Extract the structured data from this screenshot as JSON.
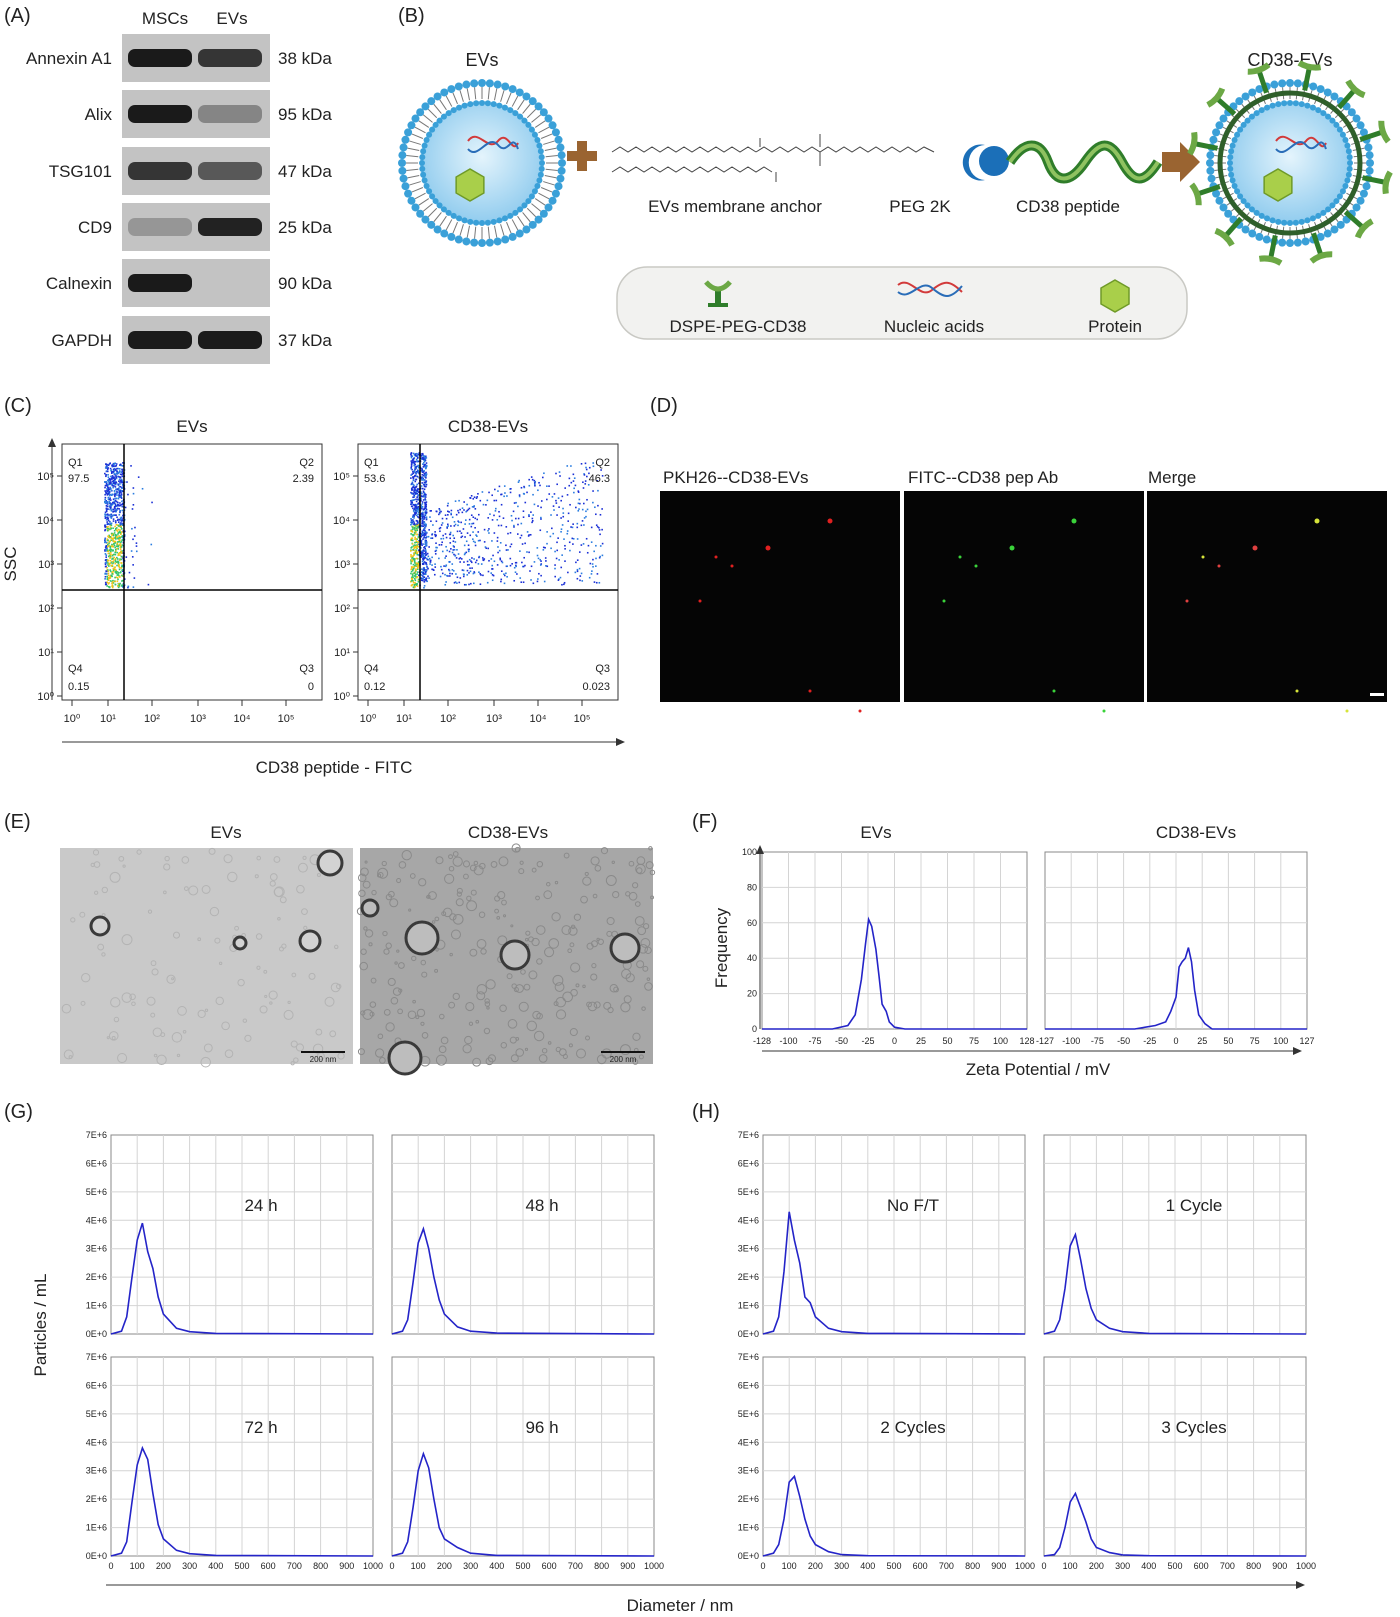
{
  "panel_labels": {
    "A": "(A)",
    "B": "(B)",
    "C": "(C)",
    "D": "(D)",
    "E": "(E)",
    "F": "(F)",
    "G": "(G)",
    "H": "(H)"
  },
  "panel_a": {
    "columns": [
      "MSCs",
      "EVs"
    ],
    "rows": [
      {
        "protein": "Annexin A1",
        "kda": "38 kDa",
        "msc": 0.95,
        "ev": 0.8
      },
      {
        "protein": "Alix",
        "kda": "95 kDa",
        "msc": 0.95,
        "ev": 0.35
      },
      {
        "protein": "TSG101",
        "kda": "47 kDa",
        "msc": 0.8,
        "ev": 0.6
      },
      {
        "protein": "CD9",
        "kda": "25 kDa",
        "msc": 0.25,
        "ev": 0.9
      },
      {
        "protein": "Calnexin",
        "kda": "90 kDa",
        "msc": 0.95,
        "ev": 0.0
      },
      {
        "protein": "GAPDH",
        "kda": "37 kDa",
        "msc": 0.95,
        "ev": 0.95
      }
    ]
  },
  "panel_b": {
    "left_title": "EVs",
    "right_title": "CD38-EVs",
    "labels": [
      "EVs membrane anchor",
      "PEG 2K",
      "CD38 peptide"
    ],
    "legend": [
      "DSPE-PEG-CD38",
      "Nucleic acids",
      "Protein"
    ],
    "colors": {
      "membrane": "#3aa0d8",
      "core": "#bfe4f7",
      "arrow": "#9a6431",
      "peptide": "#2f7d2a",
      "protein": "#a9cf4a"
    }
  },
  "panel_c": {
    "x_label": "CD38 peptide - FITC",
    "y_label": "SSC",
    "x_ticks": [
      "10⁰",
      "10¹",
      "10²",
      "10³",
      "10⁴",
      "10⁵"
    ],
    "y_ticks": [
      "10⁰",
      "10¹",
      "10²",
      "10³",
      "10⁴",
      "10⁵"
    ],
    "plots": [
      {
        "title": "EVs",
        "q1": "Q1",
        "q1v": "97.5",
        "q2": "Q2",
        "q2v": "2.39",
        "q3": "Q3",
        "q3v": "0",
        "q4": "Q4",
        "q4v": "0.15"
      },
      {
        "title": "CD38-EVs",
        "q1": "Q1",
        "q1v": "53.6",
        "q2": "Q2",
        "q2v": "46.3",
        "q3": "Q3",
        "q3v": "0.023",
        "q4": "Q4",
        "q4v": "0.12"
      }
    ]
  },
  "panel_d": {
    "labels": [
      {
        "text": "PKH26--CD38-EVs",
        "color": "#e02020"
      },
      {
        "text": "FITC--CD38 pep Ab",
        "color": "#22a222"
      },
      {
        "text": "Merge",
        "color": "#222222"
      }
    ]
  },
  "panel_e": {
    "titles": [
      "EVs",
      "CD38-EVs"
    ],
    "scale_bar": "200 nm"
  },
  "panel_f": {
    "titles": [
      "EVs",
      "CD38-EVs"
    ],
    "x_label": "Zeta Potential / mV",
    "y_label": "Frequency",
    "y_ticks": [
      "0",
      "20",
      "40",
      "60",
      "80",
      "100"
    ],
    "x_ticks_left": [
      "-128",
      "-100",
      "-75",
      "-50",
      "-25",
      "0",
      "25",
      "50",
      "75",
      "100",
      "128"
    ],
    "x_ticks_right": [
      "-127",
      "-100",
      "-75",
      "-50",
      "-25",
      "0",
      "25",
      "50",
      "75",
      "100",
      "127"
    ]
  },
  "panel_g": {
    "y_label": "Particles / mL",
    "labels": [
      "24 h",
      "48 h",
      "72 h",
      "96 h"
    ]
  },
  "panel_h": {
    "labels": [
      "No F/T",
      "1 Cycle",
      "2 Cycles",
      "3 Cycles"
    ]
  },
  "nta_axis": {
    "x_label": "Diameter / nm",
    "x_ticks": [
      "0",
      "100",
      "200",
      "300",
      "400",
      "500",
      "600",
      "700",
      "800",
      "900",
      "1000"
    ],
    "y_ticks": [
      "0E+0",
      "1E+6",
      "2E+6",
      "3E+6",
      "4E+6",
      "5E+6",
      "6E+6",
      "7E+6"
    ]
  },
  "chart_data": [
    {
      "type": "line",
      "panel": "F-left",
      "title": "EVs",
      "xlabel": "Zeta Potential / mV",
      "ylabel": "Frequency",
      "xlim": [
        -128,
        128
      ],
      "ylim": [
        0,
        100
      ],
      "x": [
        -128,
        -60,
        -45,
        -38,
        -32,
        -28,
        -25,
        -22,
        -18,
        -15,
        -12,
        -8,
        -5,
        0,
        10,
        128
      ],
      "y": [
        0,
        0,
        2,
        8,
        28,
        48,
        62,
        58,
        45,
        30,
        14,
        10,
        4,
        1,
        0,
        0
      ]
    },
    {
      "type": "line",
      "panel": "F-right",
      "title": "CD38-EVs",
      "xlabel": "Zeta Potential / mV",
      "ylabel": "Frequency",
      "xlim": [
        -127,
        127
      ],
      "ylim": [
        0,
        100
      ],
      "x": [
        -127,
        -40,
        -20,
        -10,
        -5,
        0,
        3,
        6,
        9,
        12,
        15,
        18,
        22,
        28,
        35,
        127
      ],
      "y": [
        0,
        0,
        2,
        4,
        10,
        18,
        35,
        38,
        40,
        46,
        38,
        22,
        8,
        3,
        0,
        0
      ]
    },
    {
      "type": "line",
      "panel": "G",
      "series": [
        {
          "name": "24 h",
          "x": [
            0,
            40,
            60,
            80,
            100,
            120,
            140,
            160,
            180,
            200,
            250,
            300,
            400,
            1000
          ],
          "y": [
            0,
            0.1,
            0.6,
            2.0,
            3.3,
            3.9,
            2.9,
            2.3,
            1.3,
            0.7,
            0.2,
            0.08,
            0.02,
            0
          ]
        },
        {
          "name": "48 h",
          "x": [
            0,
            40,
            60,
            80,
            100,
            120,
            140,
            160,
            180,
            200,
            250,
            300,
            400,
            1000
          ],
          "y": [
            0,
            0.1,
            0.5,
            1.8,
            3.2,
            3.7,
            3.0,
            2.0,
            1.2,
            0.7,
            0.25,
            0.1,
            0.03,
            0
          ]
        },
        {
          "name": "72 h",
          "x": [
            0,
            40,
            60,
            80,
            100,
            120,
            140,
            160,
            180,
            200,
            250,
            300,
            400,
            1000
          ],
          "y": [
            0,
            0.1,
            0.5,
            1.9,
            3.2,
            3.8,
            3.4,
            2.2,
            1.1,
            0.6,
            0.2,
            0.08,
            0.02,
            0
          ]
        },
        {
          "name": "96 h",
          "x": [
            0,
            40,
            60,
            80,
            100,
            120,
            140,
            160,
            180,
            200,
            250,
            300,
            400,
            1000
          ],
          "y": [
            0,
            0.1,
            0.5,
            1.7,
            3.0,
            3.6,
            3.1,
            2.0,
            1.0,
            0.6,
            0.3,
            0.1,
            0.02,
            0
          ]
        }
      ],
      "xlabel": "Diameter / nm",
      "ylabel": "Particles / mL",
      "xlim": [
        0,
        1000
      ],
      "ylim": [
        0,
        7000000
      ]
    },
    {
      "type": "line",
      "panel": "H",
      "series": [
        {
          "name": "No F/T",
          "x": [
            0,
            40,
            60,
            80,
            100,
            120,
            140,
            160,
            180,
            200,
            250,
            300,
            400,
            1000
          ],
          "y": [
            0,
            0.1,
            0.6,
            2.2,
            4.3,
            3.3,
            2.5,
            1.3,
            1.1,
            0.6,
            0.2,
            0.08,
            0.02,
            0
          ]
        },
        {
          "name": "1 Cycle",
          "x": [
            0,
            40,
            60,
            80,
            100,
            120,
            140,
            160,
            180,
            200,
            250,
            300,
            400,
            1000
          ],
          "y": [
            0,
            0.1,
            0.5,
            1.6,
            3.1,
            3.5,
            2.6,
            1.6,
            0.9,
            0.5,
            0.2,
            0.08,
            0.02,
            0
          ]
        },
        {
          "name": "2 Cycles",
          "x": [
            0,
            40,
            60,
            80,
            100,
            120,
            140,
            160,
            180,
            200,
            250,
            300,
            400,
            1000
          ],
          "y": [
            0,
            0.1,
            0.4,
            1.3,
            2.6,
            2.8,
            2.1,
            1.3,
            0.7,
            0.4,
            0.15,
            0.05,
            0.01,
            0
          ]
        },
        {
          "name": "3 Cycles",
          "x": [
            0,
            40,
            60,
            80,
            100,
            120,
            140,
            160,
            180,
            200,
            250,
            300,
            400,
            1000
          ],
          "y": [
            0,
            0.05,
            0.3,
            1.0,
            1.9,
            2.2,
            1.7,
            1.2,
            0.6,
            0.3,
            0.12,
            0.04,
            0.01,
            0
          ]
        }
      ],
      "xlabel": "Diameter / nm",
      "ylabel": "Particles / mL",
      "xlim": [
        0,
        1000
      ],
      "ylim": [
        0,
        7000000
      ]
    }
  ]
}
